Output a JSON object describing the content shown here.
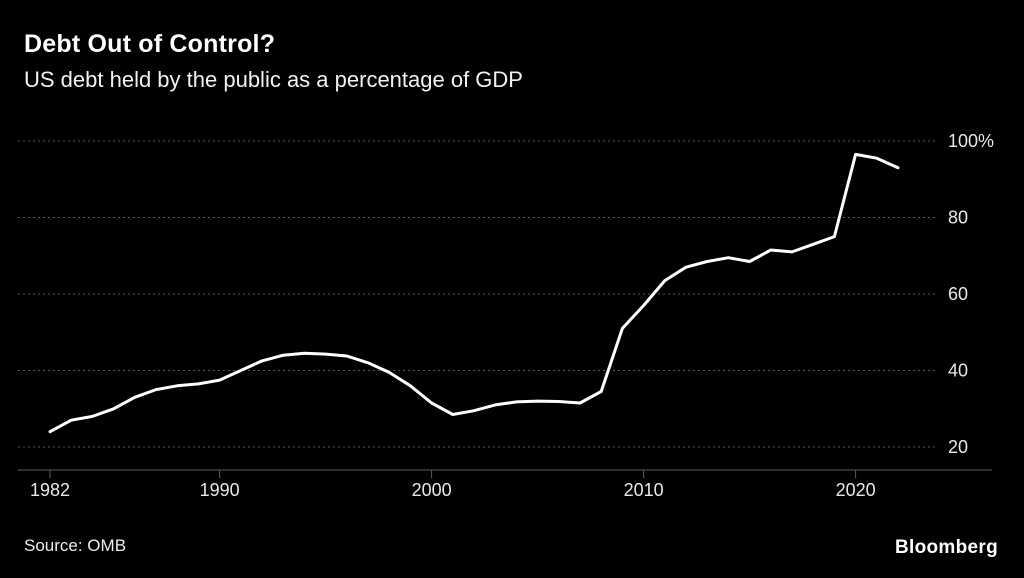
{
  "header": {
    "title": "Debt Out of Control?",
    "subtitle": "US debt held by the public as a percentage of GDP"
  },
  "footer": {
    "source": "Source: OMB",
    "brand": "Bloomberg"
  },
  "chart_data": {
    "type": "line",
    "title": "Debt Out of Control?",
    "subtitle": "US debt held by the public as a percentage of GDP",
    "x": [
      1982,
      1983,
      1984,
      1985,
      1986,
      1987,
      1988,
      1989,
      1990,
      1991,
      1992,
      1993,
      1994,
      1995,
      1996,
      1997,
      1998,
      1999,
      2000,
      2001,
      2002,
      2003,
      2004,
      2005,
      2006,
      2007,
      2008,
      2009,
      2010,
      2011,
      2012,
      2013,
      2014,
      2015,
      2016,
      2017,
      2018,
      2019,
      2020,
      2021,
      2022
    ],
    "series": [
      {
        "name": "US debt held by the public (% of GDP)",
        "values": [
          24,
          27,
          28,
          30,
          33,
          35,
          36,
          36.5,
          37.5,
          40,
          42.5,
          44,
          44.5,
          44.3,
          43.8,
          42,
          39.5,
          36,
          31.5,
          28.5,
          29.5,
          31,
          31.8,
          32,
          31.9,
          31.5,
          34.5,
          51,
          57,
          63.5,
          67,
          68.5,
          69.5,
          68.5,
          71.5,
          71,
          73,
          75,
          96.5,
          95.5,
          93
        ]
      }
    ],
    "xlim": [
      1982,
      2022
    ],
    "ylim": [
      20,
      100
    ],
    "xticks": [
      1982,
      1990,
      2000,
      2010,
      2020
    ],
    "xtick_labels": [
      "1982",
      "1990",
      "2000",
      "2010",
      "2020"
    ],
    "yticks": [
      100,
      80,
      60,
      40,
      20
    ],
    "ytick_labels": [
      "100%",
      "80",
      "60",
      "40",
      "20"
    ],
    "grid": "horizontal-dotted",
    "legend": "none",
    "line_color": "#ffffff",
    "grid_color": "#595959",
    "axis_color": "#5c5c5c",
    "tick_color": "#e8e8e8",
    "background": "#000000"
  }
}
